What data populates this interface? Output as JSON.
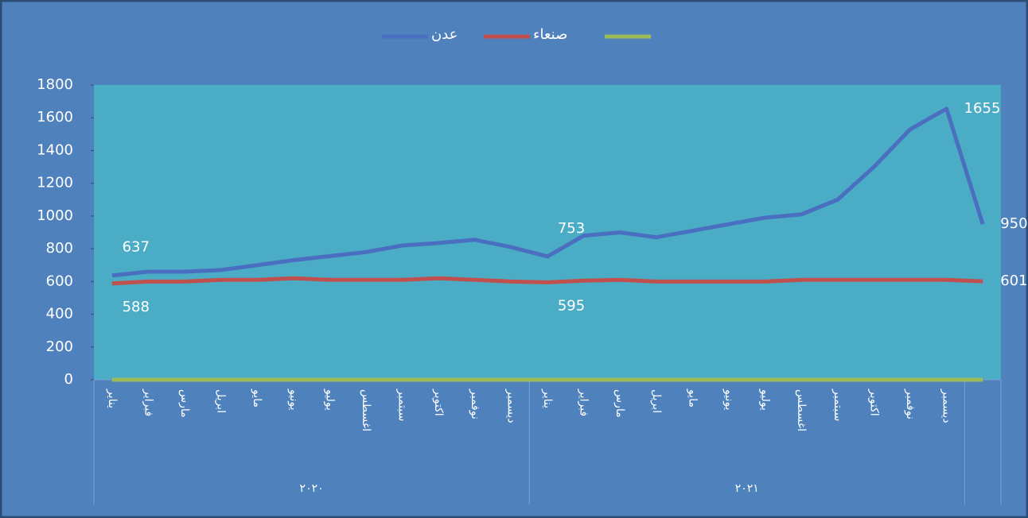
{
  "chart_data": {
    "type": "line",
    "categories": [
      "يناير",
      "فبراير",
      "مارس",
      "ابريل",
      "مايو",
      "يونيو",
      "يوليو",
      "اغسطس",
      "سبتمبر",
      "اكتوبر",
      "نوفمبر",
      "ديسمبر",
      "يناير",
      "فبراير",
      "مارس",
      "ابريل",
      "مايو",
      "يونيو",
      "يوليو",
      "اغسطس",
      "سبتمبر",
      "اكتوبر",
      "نوفمبر",
      "ديسمبر",
      null
    ],
    "category_groups": [
      "٢٠٢٠",
      "٢٠٢١"
    ],
    "series": [
      {
        "name": "عدن",
        "color": "#4a6fc0",
        "values": [
          637,
          660,
          660,
          670,
          700,
          730,
          755,
          780,
          820,
          835,
          855,
          810,
          753,
          880,
          900,
          870,
          910,
          950,
          990,
          1010,
          1100,
          1300,
          1530,
          1655,
          950
        ],
        "value_labels": [
          "637",
          null,
          null,
          null,
          null,
          null,
          null,
          null,
          null,
          null,
          null,
          null,
          "753",
          null,
          null,
          null,
          null,
          null,
          null,
          null,
          null,
          null,
          null,
          "1655",
          "950"
        ]
      },
      {
        "name": "صنعاء",
        "color": "#c0504d",
        "values": [
          588,
          600,
          600,
          610,
          610,
          620,
          610,
          610,
          610,
          620,
          610,
          600,
          595,
          605,
          610,
          600,
          600,
          600,
          600,
          610,
          610,
          610,
          610,
          610,
          601
        ],
        "value_labels": [
          "588",
          null,
          null,
          null,
          null,
          null,
          null,
          null,
          null,
          null,
          null,
          null,
          "595",
          null,
          null,
          null,
          null,
          null,
          null,
          null,
          null,
          null,
          null,
          null,
          "601"
        ]
      },
      {
        "color": "#9bbb59",
        "values": [
          0,
          0,
          0,
          0,
          0,
          0,
          0,
          0,
          0,
          0,
          0,
          0,
          0,
          0,
          0,
          0,
          0,
          0,
          0,
          0,
          0,
          0,
          0,
          0,
          0
        ]
      }
    ],
    "ylim": [
      0,
      1800
    ],
    "yticks": [
      0,
      200,
      400,
      600,
      800,
      1000,
      1200,
      1400,
      1600,
      1800
    ],
    "legend": "top"
  }
}
